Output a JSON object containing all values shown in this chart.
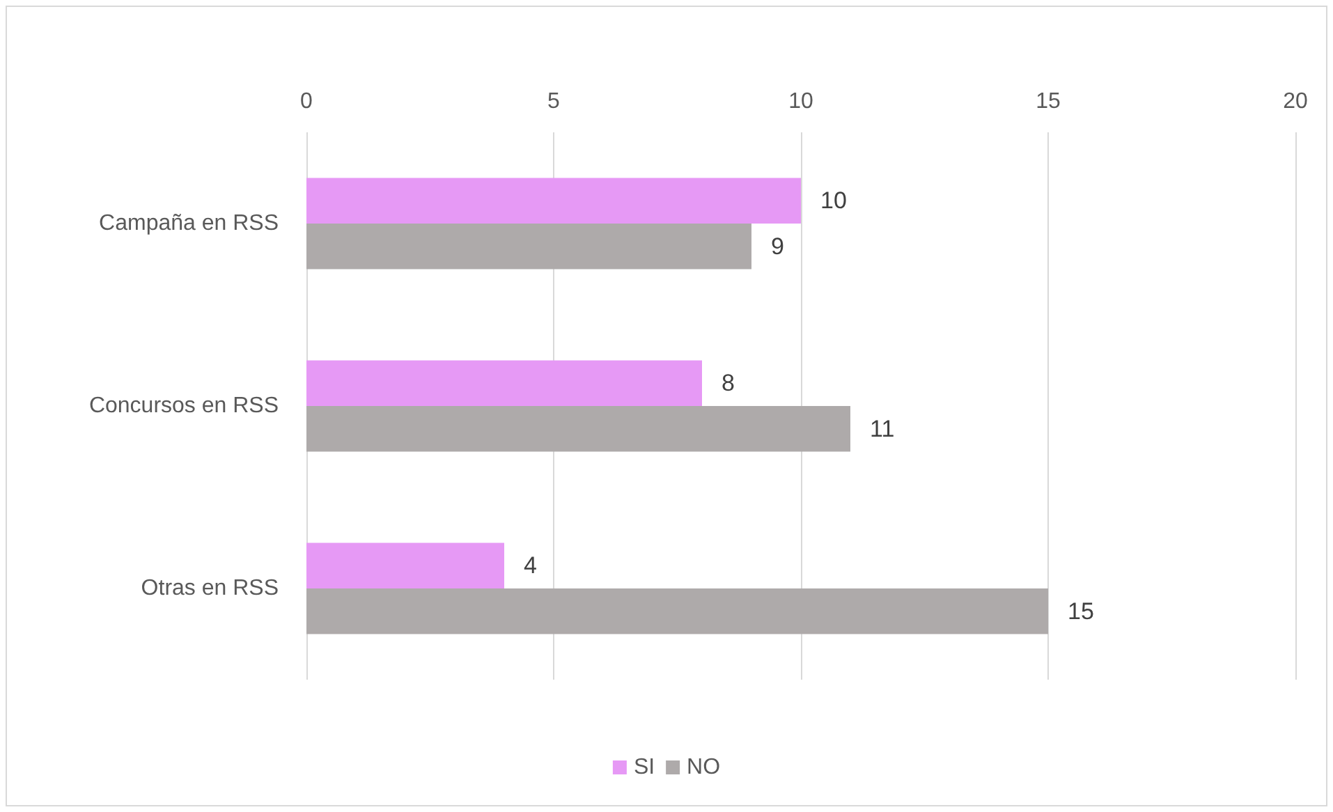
{
  "chart_data": {
    "type": "bar",
    "orientation": "horizontal",
    "categories": [
      "Campaña en RSS",
      "Concursos en RSS",
      "Otras en RSS"
    ],
    "series": [
      {
        "name": "SI",
        "color": "#e699f5",
        "values": [
          10,
          8,
          4
        ]
      },
      {
        "name": "NO",
        "color": "#aeaaaa",
        "values": [
          9,
          11,
          15
        ]
      }
    ],
    "xlim": [
      0,
      20
    ],
    "xticks": [
      0,
      5,
      10,
      15,
      20
    ],
    "grid": "x",
    "legend": "bottom",
    "data_labels": true
  }
}
